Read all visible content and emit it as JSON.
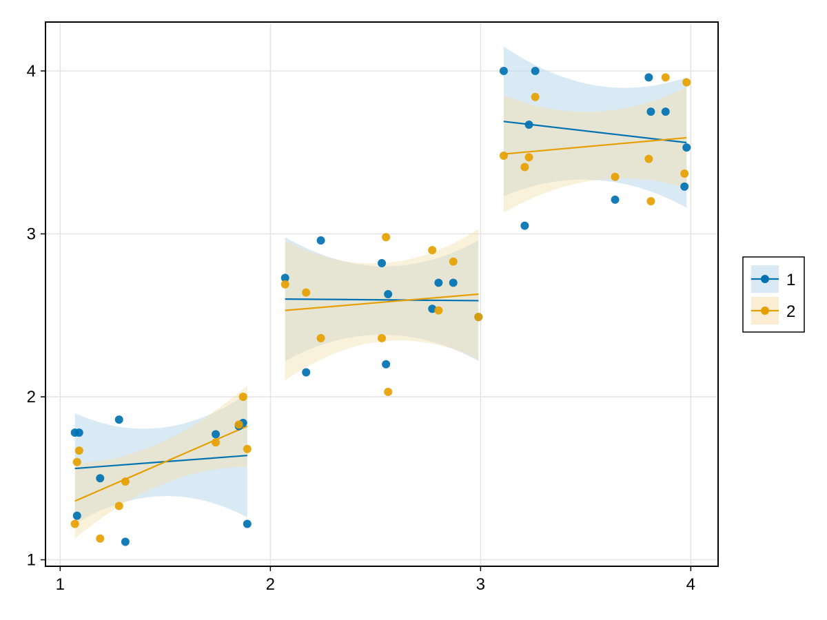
{
  "chart_data": {
    "type": "scatter",
    "title": "",
    "xlabel": "",
    "ylabel": "",
    "xlim": [
      0.93,
      4.13
    ],
    "ylim": [
      0.96,
      4.3
    ],
    "xticks": [
      1,
      2,
      3,
      4
    ],
    "yticks": [
      1,
      2,
      3,
      4
    ],
    "grid": true,
    "legend_position": "right",
    "series": [
      {
        "name": "1",
        "color": "#0072b2",
        "band_fill": "#bcd9ec",
        "points": [
          [
            1.07,
            1.78
          ],
          [
            1.09,
            1.78
          ],
          [
            1.28,
            1.86
          ],
          [
            1.19,
            1.5
          ],
          [
            1.08,
            1.27
          ],
          [
            1.31,
            1.11
          ],
          [
            1.74,
            1.77
          ],
          [
            1.85,
            1.82
          ],
          [
            1.87,
            1.84
          ],
          [
            1.89,
            1.22
          ],
          [
            2.07,
            2.73
          ],
          [
            2.24,
            2.96
          ],
          [
            2.17,
            2.15
          ],
          [
            2.53,
            2.82
          ],
          [
            2.56,
            2.63
          ],
          [
            2.55,
            2.2
          ],
          [
            2.8,
            2.7
          ],
          [
            2.87,
            2.7
          ],
          [
            2.77,
            2.54
          ],
          [
            2.99,
            2.49
          ],
          [
            3.11,
            4.0
          ],
          [
            3.26,
            4.0
          ],
          [
            3.23,
            3.67
          ],
          [
            3.21,
            3.05
          ],
          [
            3.64,
            3.21
          ],
          [
            3.8,
            3.96
          ],
          [
            3.81,
            3.75
          ],
          [
            3.88,
            3.75
          ],
          [
            3.97,
            3.29
          ],
          [
            3.98,
            3.53
          ]
        ],
        "fits": [
          {
            "x": [
              1.07,
              1.89
            ],
            "y": [
              1.56,
              1.64
            ],
            "band": [
              [
                1.07,
                1.56,
                0.34
              ],
              [
                1.48,
                1.6,
                0.21
              ],
              [
                1.89,
                1.64,
                0.38
              ]
            ]
          },
          {
            "x": [
              2.07,
              2.99
            ],
            "y": [
              2.6,
              2.59
            ],
            "band": [
              [
                2.07,
                2.6,
                0.38
              ],
              [
                2.53,
                2.59,
                0.21
              ],
              [
                2.99,
                2.59,
                0.37
              ]
            ]
          },
          {
            "x": [
              3.11,
              3.98
            ],
            "y": [
              3.69,
              3.56
            ],
            "band": [
              [
                3.11,
                3.69,
                0.46
              ],
              [
                3.55,
                3.62,
                0.29
              ],
              [
                3.98,
                3.56,
                0.4
              ]
            ]
          }
        ]
      },
      {
        "name": "2",
        "color": "#e69f00",
        "band_fill": "#f5dfac",
        "points": [
          [
            1.08,
            1.6
          ],
          [
            1.09,
            1.67
          ],
          [
            1.07,
            1.22
          ],
          [
            1.19,
            1.13
          ],
          [
            1.28,
            1.33
          ],
          [
            1.31,
            1.48
          ],
          [
            1.74,
            1.72
          ],
          [
            1.85,
            1.83
          ],
          [
            1.87,
            2.0
          ],
          [
            1.89,
            1.68
          ],
          [
            2.07,
            2.69
          ],
          [
            2.17,
            2.64
          ],
          [
            2.24,
            2.36
          ],
          [
            2.53,
            2.36
          ],
          [
            2.55,
            2.98
          ],
          [
            2.56,
            2.03
          ],
          [
            2.77,
            2.9
          ],
          [
            2.87,
            2.83
          ],
          [
            2.8,
            2.53
          ],
          [
            2.99,
            2.49
          ],
          [
            3.11,
            3.48
          ],
          [
            3.26,
            3.84
          ],
          [
            3.23,
            3.47
          ],
          [
            3.21,
            3.41
          ],
          [
            3.64,
            3.35
          ],
          [
            3.8,
            3.46
          ],
          [
            3.81,
            3.2
          ],
          [
            3.88,
            3.96
          ],
          [
            3.97,
            3.37
          ],
          [
            3.98,
            3.93
          ]
        ],
        "fits": [
          {
            "x": [
              1.07,
              1.89
            ],
            "y": [
              1.36,
              1.82
            ],
            "band": [
              [
                1.07,
                1.36,
                0.23
              ],
              [
                1.48,
                1.59,
                0.13
              ],
              [
                1.89,
                1.82,
                0.25
              ]
            ]
          },
          {
            "x": [
              2.07,
              2.99
            ],
            "y": [
              2.53,
              2.63
            ],
            "band": [
              [
                2.07,
                2.53,
                0.43
              ],
              [
                2.53,
                2.58,
                0.24
              ],
              [
                2.99,
                2.63,
                0.4
              ]
            ]
          },
          {
            "x": [
              3.11,
              3.98
            ],
            "y": [
              3.49,
              3.59
            ],
            "band": [
              [
                3.11,
                3.49,
                0.36
              ],
              [
                3.55,
                3.54,
                0.21
              ],
              [
                3.98,
                3.59,
                0.31
              ]
            ]
          }
        ]
      }
    ]
  }
}
